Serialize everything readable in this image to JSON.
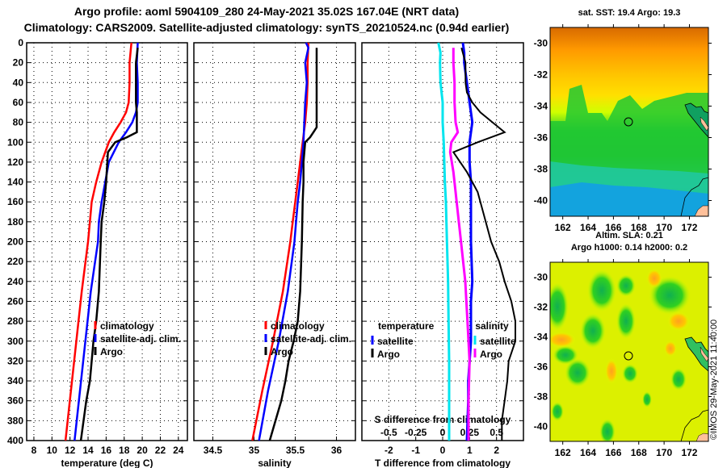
{
  "header": {
    "title_line1": "Argo profile: aoml 5904109_280 24-May-2021 35.02S 167.04E (NRT data)",
    "title_line2": "Climatology: CARS2009. Satellite-adjusted climatology: synTS_20210524.nc (0.94d earlier)"
  },
  "colors": {
    "climatology": "#ff0000",
    "satellite": "#0000ff",
    "argo": "#000000",
    "salinity_satellite": "#00e5ee",
    "salinity_argo": "#ff00ff"
  },
  "chart_data": [
    {
      "type": "line",
      "name": "temperature-profile",
      "xlabel": "temperature (deg C)",
      "ylabel": "",
      "xlim": [
        7.2,
        25
      ],
      "ylim": [
        400,
        0
      ],
      "xticks": [
        "8",
        "10",
        "12",
        "14",
        "16",
        "18",
        "20",
        "22",
        "24"
      ],
      "yticks": [
        "0",
        "20",
        "40",
        "60",
        "80",
        "100",
        "120",
        "140",
        "160",
        "180",
        "200",
        "220",
        "240",
        "260",
        "280",
        "300",
        "320",
        "340",
        "360",
        "380",
        "400"
      ],
      "grid": true,
      "legend": {
        "placement": "middle-right",
        "entries": [
          "climatology",
          "satellite-adj. clim.",
          "Argo"
        ]
      },
      "series": [
        {
          "name": "climatology",
          "depth": [
            0,
            20,
            40,
            60,
            70,
            80,
            90,
            100,
            120,
            140,
            160,
            180,
            200,
            250,
            300,
            350,
            400
          ],
          "values": [
            18.8,
            18.6,
            18.6,
            18.5,
            18.2,
            17.6,
            16.9,
            16.3,
            15.5,
            14.9,
            14.4,
            14.2,
            14.0,
            13.3,
            12.7,
            12.1,
            11.5
          ]
        },
        {
          "name": "satellite-adj. clim.",
          "depth": [
            0,
            20,
            40,
            60,
            70,
            80,
            90,
            100,
            120,
            140,
            160,
            180,
            200,
            250,
            300,
            350,
            400
          ],
          "values": [
            19.5,
            19.4,
            19.5,
            19.5,
            19.3,
            18.9,
            18.2,
            17.4,
            16.3,
            15.9,
            15.5,
            15.2,
            15.1,
            14.3,
            13.7,
            13.1,
            12.5
          ]
        },
        {
          "name": "Argo",
          "depth": [
            5,
            20,
            40,
            60,
            70,
            90,
            95,
            100,
            110,
            140,
            160,
            180,
            200,
            250,
            280,
            300,
            340,
            360,
            400
          ],
          "values": [
            19.5,
            19.3,
            19.3,
            19.3,
            19.4,
            19.4,
            18.3,
            17.0,
            16.2,
            16.0,
            15.8,
            15.5,
            15.4,
            15.2,
            14.9,
            14.6,
            14.2,
            13.8,
            13.2
          ]
        }
      ]
    },
    {
      "type": "line",
      "name": "salinity-profile",
      "xlabel": "salinity",
      "xlim": [
        34.27,
        36.23
      ],
      "ylim": [
        400,
        0
      ],
      "xticks": [
        "34.5",
        "35",
        "35.5",
        "36"
      ],
      "grid": true,
      "legend": {
        "placement": "middle-right",
        "entries": [
          "climatology",
          "satellite-adj. clim.",
          "Argo"
        ]
      },
      "series": [
        {
          "name": "climatology",
          "depth": [
            0,
            20,
            40,
            60,
            80,
            100,
            120,
            140,
            160,
            180,
            200,
            250,
            300,
            350,
            400
          ],
          "values": [
            35.66,
            35.65,
            35.65,
            35.64,
            35.62,
            35.59,
            35.56,
            35.53,
            35.5,
            35.47,
            35.44,
            35.35,
            35.23,
            35.1,
            34.98
          ]
        },
        {
          "name": "satellite-adj. clim.",
          "depth": [
            0,
            5,
            20,
            40,
            60,
            80,
            100,
            120,
            140,
            160,
            180,
            200,
            250,
            300,
            350,
            400
          ],
          "values": [
            35.63,
            35.66,
            35.62,
            35.64,
            35.62,
            35.61,
            35.6,
            35.58,
            35.56,
            35.53,
            35.51,
            35.49,
            35.41,
            35.3,
            35.17,
            35.06
          ]
        },
        {
          "name": "Argo",
          "depth": [
            5,
            20,
            40,
            60,
            80,
            85,
            90,
            95,
            100,
            120,
            140,
            160,
            200,
            250,
            280,
            300,
            320,
            340,
            360,
            400
          ],
          "values": [
            35.76,
            35.76,
            35.76,
            35.76,
            35.76,
            35.76,
            35.72,
            35.68,
            35.62,
            35.6,
            35.6,
            35.59,
            35.58,
            35.56,
            35.53,
            35.48,
            35.42,
            35.38,
            35.33,
            35.19
          ]
        }
      ]
    },
    {
      "type": "line",
      "name": "difference-profile",
      "xlabel": "T difference from climatology",
      "secondary_xlabel": "S difference from climatology",
      "xlim": [
        -3,
        3
      ],
      "secondary_xlim": [
        -0.75,
        0.75
      ],
      "ylim": [
        400,
        0
      ],
      "xticks": [
        "-2",
        "-1",
        "0",
        "1",
        "2"
      ],
      "secondary_xticks": [
        "-0.5",
        "-0.25",
        "0",
        "0.25",
        "0.5"
      ],
      "grid": true,
      "legend": [
        {
          "placement": "middle-left",
          "heading": "temperature",
          "entries": [
            "satellite",
            "Argo"
          ]
        },
        {
          "placement": "middle-right",
          "heading": "salinity",
          "entries": [
            "satellite",
            "Argo"
          ]
        }
      ],
      "series": [
        {
          "name": "temperature satellite",
          "axis": "T",
          "depth": [
            0,
            10,
            20,
            30,
            40,
            50,
            60,
            70,
            80,
            90,
            100,
            120,
            140,
            160,
            200,
            240,
            260,
            280,
            300,
            340,
            360,
            400
          ],
          "values": [
            0.75,
            0.8,
            0.8,
            0.85,
            0.9,
            0.95,
            1.0,
            1.05,
            1.1,
            1.05,
            1.0,
            1.0,
            1.05,
            1.05,
            1.05,
            1.1,
            1.05,
            1.05,
            1.05,
            0.95,
            0.95,
            0.9
          ]
        },
        {
          "name": "temperature Argo",
          "depth": [
            5,
            20,
            40,
            50,
            60,
            70,
            80,
            90,
            100,
            110,
            130,
            150,
            170,
            200,
            220,
            240,
            260,
            280,
            300,
            320,
            340,
            360,
            380,
            400
          ],
          "axis": "T",
          "values": [
            0.7,
            0.85,
            0.85,
            0.9,
            1.1,
            1.4,
            1.85,
            2.3,
            1.3,
            0.4,
            0.9,
            1.3,
            1.5,
            1.8,
            2.1,
            2.3,
            2.55,
            2.7,
            2.7,
            2.45,
            2.4,
            2.3,
            2.2,
            2.2
          ]
        },
        {
          "name": "salinity satellite",
          "axis": "S",
          "depth": [
            0,
            10,
            20,
            40,
            60,
            80,
            100,
            120,
            140,
            160,
            200,
            240,
            280,
            320,
            360,
            400
          ],
          "values": [
            -0.04,
            -0.02,
            -0.025,
            -0.02,
            0.0,
            0.0,
            0.01,
            0.015,
            0.02,
            0.03,
            0.04,
            0.05,
            0.055,
            0.06,
            0.06,
            0.06
          ]
        },
        {
          "name": "salinity Argo",
          "axis": "S",
          "depth": [
            5,
            20,
            40,
            60,
            80,
            90,
            100,
            110,
            130,
            150,
            180,
            200,
            240,
            280,
            320,
            360,
            400
          ],
          "values": [
            0.1,
            0.1,
            0.11,
            0.11,
            0.12,
            0.14,
            0.08,
            0.07,
            0.1,
            0.12,
            0.15,
            0.17,
            0.21,
            0.23,
            0.25,
            0.24,
            0.24
          ]
        }
      ]
    },
    {
      "type": "heatmap",
      "name": "sst-map",
      "title": "sat. SST: 19.4 Argo: 19.3",
      "xlim": [
        161,
        173.5
      ],
      "ylim": [
        -41,
        -29
      ],
      "xticks": [
        "162",
        "164",
        "166",
        "168",
        "170",
        "172"
      ],
      "yticks": [
        "-30",
        "-32",
        "-34",
        "-36",
        "-38",
        "-40"
      ],
      "marker": {
        "lon": 167.04,
        "lat": -35.02
      }
    },
    {
      "type": "heatmap",
      "name": "sla-map",
      "title_line1": "Altim. SLA: 0.21",
      "title_line2": "Argo h1000: 0.14 h2000: 0.2",
      "xlim": [
        161,
        173.5
      ],
      "ylim": [
        -41,
        -29
      ],
      "xticks": [
        "162",
        "164",
        "166",
        "168",
        "170",
        "172"
      ],
      "yticks": [
        "-30",
        "-32",
        "-34",
        "-36",
        "-38",
        "-40"
      ],
      "marker": {
        "lon": 167.04,
        "lat": -35.02
      }
    }
  ],
  "credit": "©IMOS 29-May-2021 11:40:00"
}
